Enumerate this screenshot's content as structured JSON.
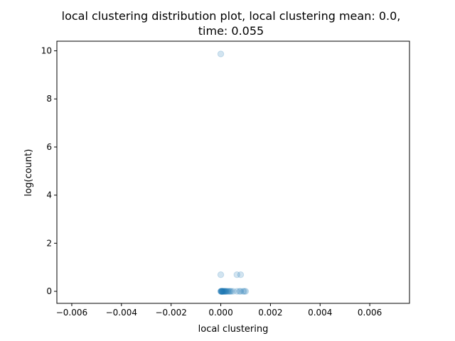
{
  "chart_data": {
    "type": "scatter",
    "title_line1": "local clustering distribution plot, local clustering mean: 0.0,",
    "title_line2": "time: 0.055",
    "xlabel": "local clustering",
    "ylabel": "log(count)",
    "xlim": [
      -0.0066,
      0.0076
    ],
    "ylim": [
      -0.5,
      10.4
    ],
    "xticks": [
      -0.006,
      -0.004,
      -0.002,
      0.0,
      0.002,
      0.004,
      0.006
    ],
    "xtick_labels": [
      "−0.006",
      "−0.004",
      "−0.002",
      "0.000",
      "0.002",
      "0.004",
      "0.006"
    ],
    "yticks": [
      0,
      2,
      4,
      6,
      8,
      10
    ],
    "ytick_labels": [
      "0",
      "2",
      "4",
      "6",
      "8",
      "10"
    ],
    "grid": false,
    "marker_color": "#1f77b4",
    "marker_alpha": 0.2,
    "points": [
      {
        "x": 0.0,
        "y": 9.87
      },
      {
        "x": 0.0,
        "y": 0.69
      },
      {
        "x": 0.00065,
        "y": 0.69
      },
      {
        "x": 0.0008,
        "y": 0.69
      },
      {
        "x": 0.0,
        "y": 0.0
      },
      {
        "x": 1e-05,
        "y": 0.0
      },
      {
        "x": 2e-05,
        "y": 0.0
      },
      {
        "x": 3e-05,
        "y": 0.0
      },
      {
        "x": 4e-05,
        "y": 0.0
      },
      {
        "x": 5e-05,
        "y": 0.0
      },
      {
        "x": 6e-05,
        "y": 0.0
      },
      {
        "x": 7e-05,
        "y": 0.0
      },
      {
        "x": 8e-05,
        "y": 0.0
      },
      {
        "x": 0.0001,
        "y": 0.0
      },
      {
        "x": 0.00012,
        "y": 0.0
      },
      {
        "x": 0.00014,
        "y": 0.0
      },
      {
        "x": 0.00016,
        "y": 0.0
      },
      {
        "x": 0.00018,
        "y": 0.0
      },
      {
        "x": 0.0002,
        "y": 0.0
      },
      {
        "x": 0.00023,
        "y": 0.0
      },
      {
        "x": 0.00026,
        "y": 0.0
      },
      {
        "x": 0.0003,
        "y": 0.0
      },
      {
        "x": 0.00034,
        "y": 0.0
      },
      {
        "x": 0.00038,
        "y": 0.0
      },
      {
        "x": 0.00042,
        "y": 0.0
      },
      {
        "x": 0.0005,
        "y": 0.0
      },
      {
        "x": 0.00065,
        "y": 0.0
      },
      {
        "x": 0.00075,
        "y": 0.0
      },
      {
        "x": 0.0008,
        "y": 0.0
      },
      {
        "x": 0.0009,
        "y": 0.0
      },
      {
        "x": 0.00095,
        "y": 0.0
      },
      {
        "x": 0.001,
        "y": 0.0
      }
    ]
  }
}
